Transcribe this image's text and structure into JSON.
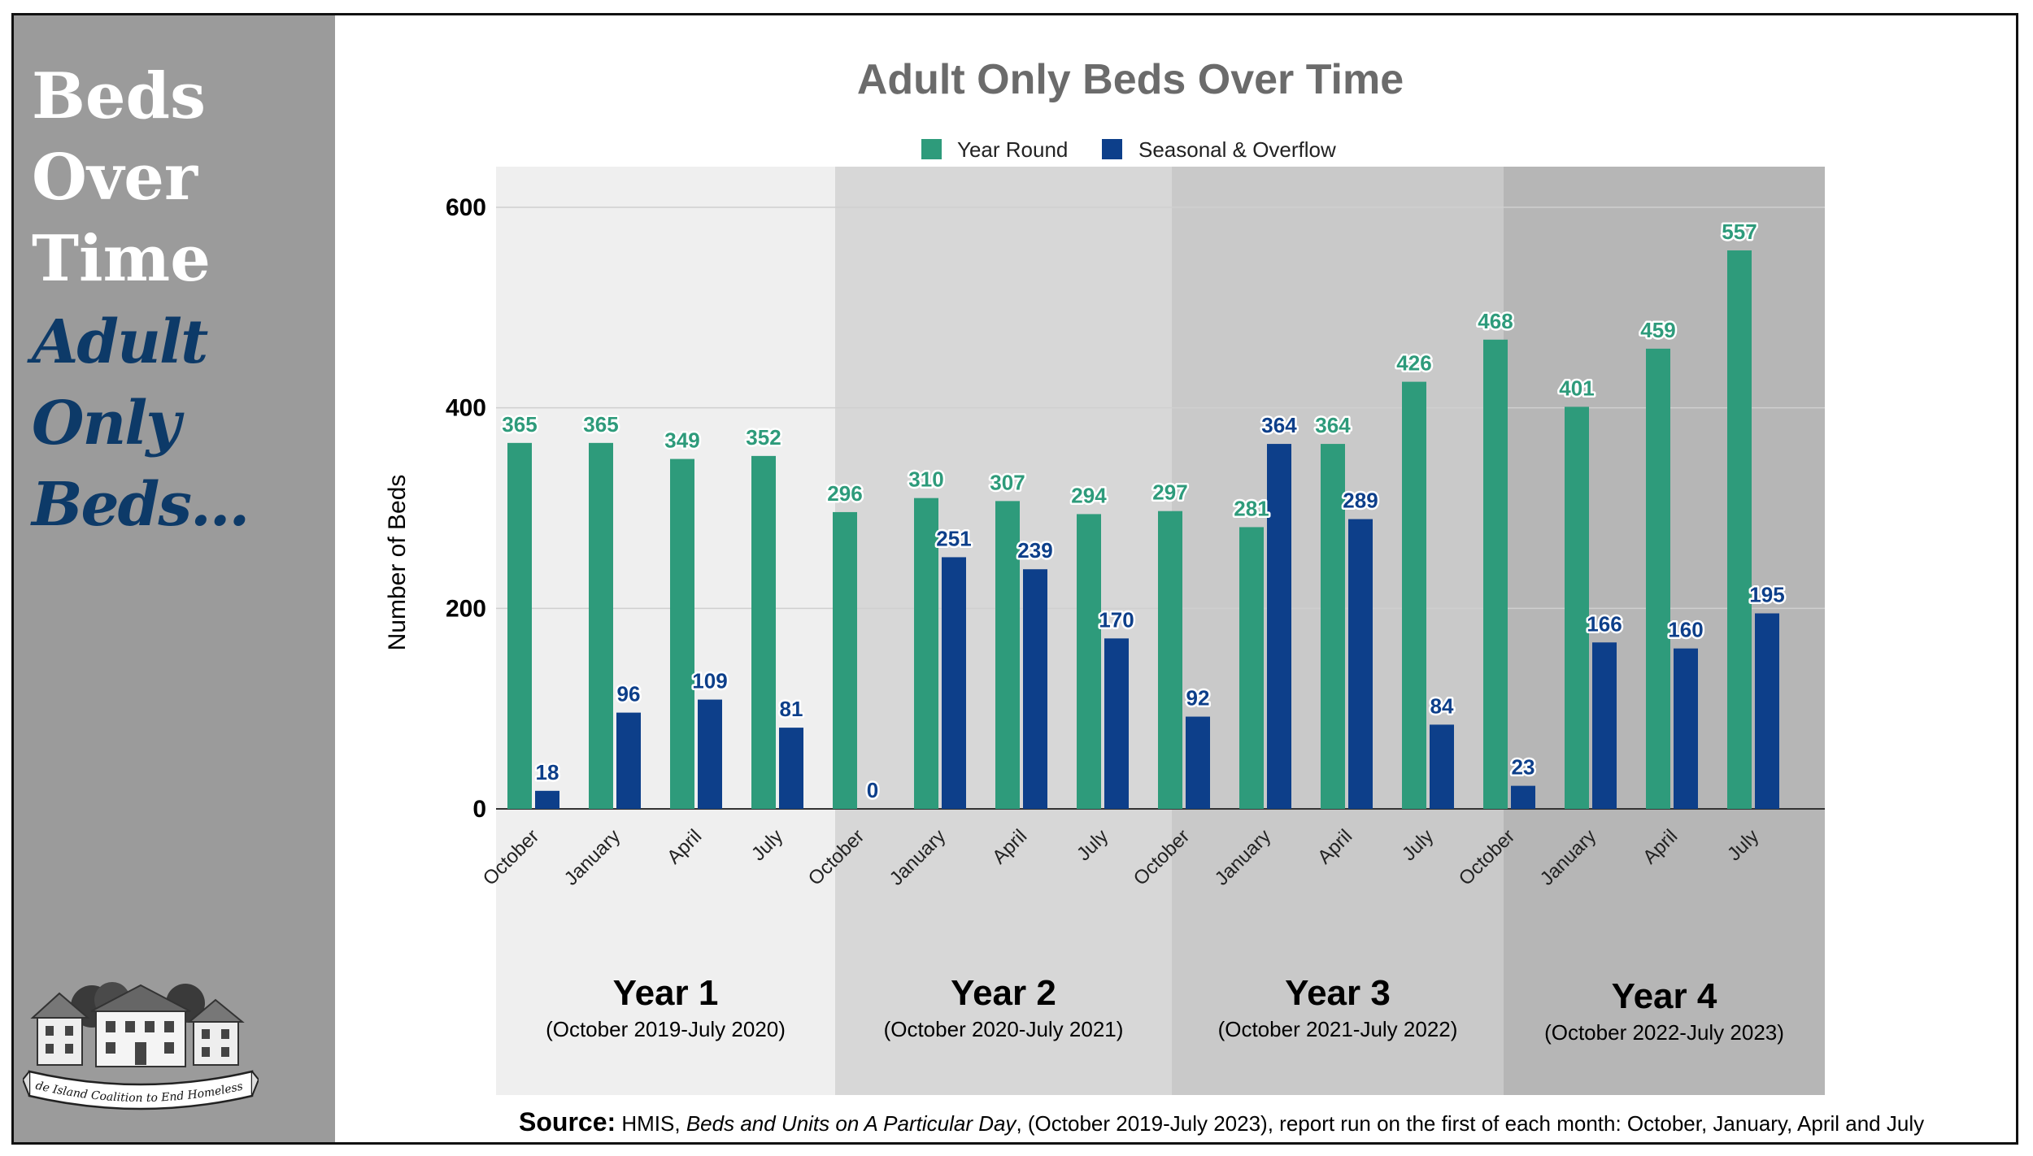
{
  "sidebar": {
    "title_lines": [
      "Beds",
      "Over",
      "Time"
    ],
    "subtitle_lines": [
      "Adult",
      "Only",
      "Beds..."
    ],
    "logo_text": "Rhode Island Coalition to End Homelessness"
  },
  "colors": {
    "year_round": "#2e9b7b",
    "seasonal": "#0d3f8a",
    "sidebar": "#9b9b9b",
    "title": "#6b6b6b"
  },
  "source": {
    "label": "Source:",
    "text_a": "HMIS, ",
    "text_italic": "Beds and Units on A Particular Day",
    "text_b": ", (October 2019-July 2023), report run on the first of each month: October, January, April and July"
  },
  "chart_data": {
    "type": "bar",
    "title": "Adult Only Beds Over Time",
    "ylabel": "Number of Beds",
    "ylim": [
      0,
      600
    ],
    "yticks": [
      0,
      200,
      400,
      600
    ],
    "grid": true,
    "legend_position": "top-center",
    "categories": [
      "October",
      "January",
      "April",
      "July",
      "October",
      "January",
      "April",
      "July",
      "October",
      "January",
      "April",
      "July",
      "October",
      "January",
      "April",
      "July"
    ],
    "series": [
      {
        "name": "Year Round",
        "values": [
          365,
          365,
          349,
          352,
          296,
          310,
          307,
          294,
          297,
          281,
          364,
          426,
          468,
          401,
          459,
          557
        ]
      },
      {
        "name": "Seasonal & Overflow",
        "values": [
          18,
          96,
          109,
          81,
          0,
          251,
          239,
          170,
          92,
          364,
          289,
          84,
          23,
          166,
          160,
          195
        ]
      }
    ],
    "groups": [
      {
        "label": "Year 1",
        "range": "(October 2019-July 2020)"
      },
      {
        "label": "Year 2",
        "range": "(October 2020-July 2021)"
      },
      {
        "label": "Year 3",
        "range": "(October 2021-July 2022)"
      },
      {
        "label": "Year 4",
        "range": "(October 2022-July 2023)"
      }
    ]
  }
}
